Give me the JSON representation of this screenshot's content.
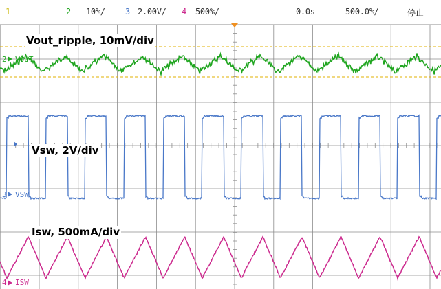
{
  "toolbar": {
    "ch1": "1",
    "ch2_num": "2",
    "ch2_scale": "10%/",
    "ch3_num": "3",
    "ch3_scale": "2.00V/",
    "ch4_num": "4",
    "ch4_scale": "500%/",
    "time_offset": "0.0s",
    "time_scale": "500.0%/",
    "run_state": "停止"
  },
  "channels": {
    "vout": {
      "marker": "2",
      "label": "VOUT",
      "annotation": "Vout_ripple, 10mV/div"
    },
    "vsw": {
      "marker": "3",
      "label": "VSW",
      "annotation": "Vsw, 2V/div"
    },
    "isw": {
      "marker": "4",
      "label": "ISW",
      "annotation": "Isw, 500mA/div"
    }
  },
  "colors": {
    "ch1": "#c8b400",
    "ch2": "#1fa51f",
    "ch3": "#4a78c8",
    "ch4": "#cc2a8e",
    "grid": "#8c8c8c",
    "trigger_marker": "#f09020",
    "cursor_dash": "#e0b000"
  },
  "waveform": {
    "period_divisions": 1.0,
    "vsw_duty": 0.55,
    "isw_rise_fraction": 0.55
  }
}
